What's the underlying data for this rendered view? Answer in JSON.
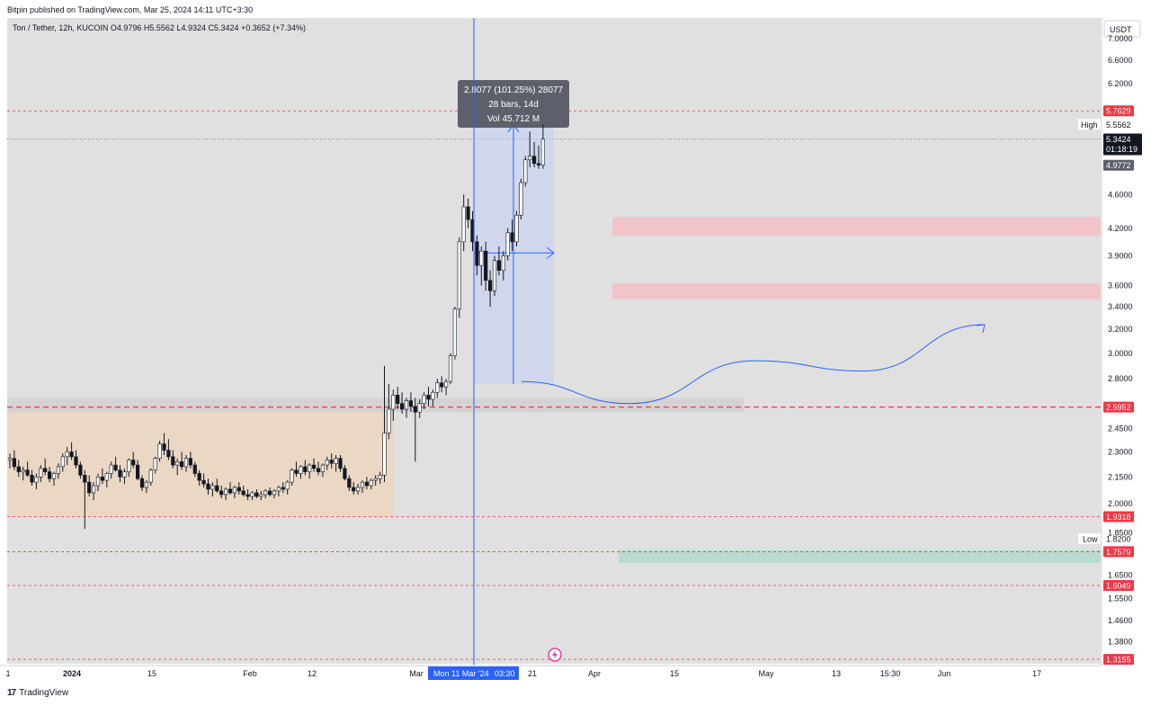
{
  "header": {
    "published": "Bitpin published on TradingView.com, Mar 25, 2024 14:11 UTC+3:30"
  },
  "footer": {
    "brand": "TradingView",
    "logo": "17"
  },
  "legend": {
    "text": "Ton / Tether, 12h, KUCOIN  O4.9796  H5.5562  L4.9324  C5.3424  +0.3652 (+7.34%)"
  },
  "currency": "USDT",
  "colors": {
    "up": "#ffffff",
    "down": "#131722",
    "dashed": "#f23645",
    "crosshair": "#2962ff",
    "bg": "#e0e0e0"
  },
  "chart_data": {
    "type": "candlestick",
    "title": "Ton / Tether, 12h, KUCOIN",
    "y_axis": {
      "scale": "log",
      "range": [
        1.3,
        7.4
      ]
    },
    "x_axis_labels": [
      "1",
      "2024",
      "15",
      "Feb",
      "12",
      "Mar",
      "21",
      "Apr",
      "15",
      "May",
      "13",
      "15:30",
      "Jun",
      "17"
    ],
    "price_ticks": [
      "7.0000",
      "6.6000",
      "6.2000",
      "4.6000",
      "4.2000",
      "3.9000",
      "3.6000",
      "3.4000",
      "3.2000",
      "3.0000",
      "2.8000",
      "2.4500",
      "2.3000",
      "2.1500",
      "2.0000",
      "1.8500",
      "1.6500",
      "1.5500",
      "1.4600",
      "1.3800"
    ],
    "horizontal_levels": [
      {
        "value": 5.7629,
        "label": "5.7629",
        "style": "dashed",
        "color": "#f23645"
      },
      {
        "value": 2.5952,
        "label": "2.5952",
        "style": "dashed",
        "color": "#f23645"
      },
      {
        "value": 1.9318,
        "label": "1.9318",
        "style": "dashed",
        "color": "#f23645"
      },
      {
        "value": 1.7579,
        "label": "1.7579",
        "style": "dashed",
        "color": "#f23645"
      },
      {
        "value": 1.6049,
        "label": "1.6049",
        "style": "dashed",
        "color": "#f23645"
      },
      {
        "value": 1.3155,
        "label": "1.3155",
        "style": "dashed",
        "color": "#f23645"
      }
    ],
    "high": {
      "label": "High",
      "value": "5.5562"
    },
    "low": {
      "label": "Low",
      "value": "1.8200"
    },
    "last_price": {
      "value": "5.3424",
      "countdown": "01:18:19"
    },
    "prev_close": {
      "value": "4.9772"
    },
    "zones": [
      {
        "kind": "resistance",
        "low": 4.12,
        "high": 4.33,
        "color": "#f0c4c8"
      },
      {
        "kind": "resistance",
        "low": 3.47,
        "high": 3.62,
        "color": "#f0c4c8"
      },
      {
        "kind": "support",
        "low": 1.705,
        "high": 1.765,
        "color": "#b9dcd0"
      },
      {
        "kind": "range",
        "low": 1.93,
        "high": 2.59,
        "color": "#ead8c4"
      },
      {
        "kind": "band",
        "low": 2.56,
        "high": 2.66,
        "color": "#d0d0d0"
      }
    ],
    "measure_tool": {
      "line1": "2.8077 (101.25%) 28077",
      "line2": "28 bars, 14d",
      "line3": "Vol 45.712 M",
      "from": 2.76,
      "to": 5.55
    },
    "crosshair_label": {
      "date": "Mon 11 Mar '24",
      "time": "03:30"
    },
    "projection_path": [
      {
        "x": 580,
        "price": 2.78
      },
      {
        "x": 700,
        "price": 2.62
      },
      {
        "x": 840,
        "price": 2.94
      },
      {
        "x": 960,
        "price": 2.86
      },
      {
        "x": 1095,
        "price": 3.24
      }
    ],
    "candles": [
      [
        2.25,
        2.29,
        2.2,
        2.26
      ],
      [
        2.26,
        2.31,
        2.19,
        2.21
      ],
      [
        2.21,
        2.25,
        2.15,
        2.18
      ],
      [
        2.18,
        2.21,
        2.13,
        2.19
      ],
      [
        2.19,
        2.24,
        2.15,
        2.16
      ],
      [
        2.16,
        2.19,
        2.1,
        2.12
      ],
      [
        2.12,
        2.17,
        2.08,
        2.15
      ],
      [
        2.15,
        2.22,
        2.12,
        2.2
      ],
      [
        2.2,
        2.26,
        2.16,
        2.18
      ],
      [
        2.18,
        2.21,
        2.12,
        2.14
      ],
      [
        2.14,
        2.18,
        2.1,
        2.17
      ],
      [
        2.17,
        2.23,
        2.14,
        2.21
      ],
      [
        2.21,
        2.29,
        2.18,
        2.27
      ],
      [
        2.27,
        2.33,
        2.22,
        2.3
      ],
      [
        2.3,
        2.36,
        2.25,
        2.27
      ],
      [
        2.27,
        2.31,
        2.2,
        2.22
      ],
      [
        2.22,
        2.24,
        2.14,
        2.16
      ],
      [
        2.16,
        2.19,
        1.87,
        2.12
      ],
      [
        2.12,
        2.16,
        2.04,
        2.06
      ],
      [
        2.06,
        2.12,
        2.02,
        2.1
      ],
      [
        2.1,
        2.17,
        2.07,
        2.15
      ],
      [
        2.15,
        2.2,
        2.11,
        2.13
      ],
      [
        2.13,
        2.18,
        2.09,
        2.17
      ],
      [
        2.17,
        2.24,
        2.14,
        2.22
      ],
      [
        2.22,
        2.27,
        2.18,
        2.19
      ],
      [
        2.19,
        2.22,
        2.12,
        2.15
      ],
      [
        2.15,
        2.2,
        2.11,
        2.18
      ],
      [
        2.18,
        2.26,
        2.15,
        2.25
      ],
      [
        2.25,
        2.3,
        2.2,
        2.22
      ],
      [
        2.22,
        2.25,
        2.13,
        2.14
      ],
      [
        2.14,
        2.16,
        2.07,
        2.09
      ],
      [
        2.09,
        2.13,
        2.06,
        2.12
      ],
      [
        2.12,
        2.2,
        2.1,
        2.19
      ],
      [
        2.19,
        2.27,
        2.17,
        2.26
      ],
      [
        2.26,
        2.37,
        2.24,
        2.35
      ],
      [
        2.35,
        2.42,
        2.28,
        2.31
      ],
      [
        2.31,
        2.38,
        2.25,
        2.27
      ],
      [
        2.27,
        2.31,
        2.2,
        2.22
      ],
      [
        2.22,
        2.26,
        2.16,
        2.24
      ],
      [
        2.24,
        2.3,
        2.19,
        2.21
      ],
      [
        2.21,
        2.28,
        2.18,
        2.26
      ],
      [
        2.26,
        2.3,
        2.2,
        2.22
      ],
      [
        2.22,
        2.24,
        2.15,
        2.17
      ],
      [
        2.17,
        2.19,
        2.1,
        2.13
      ],
      [
        2.13,
        2.17,
        2.09,
        2.11
      ],
      [
        2.11,
        2.14,
        2.05,
        2.08
      ],
      [
        2.08,
        2.12,
        2.04,
        2.1
      ],
      [
        2.1,
        2.14,
        2.06,
        2.07
      ],
      [
        2.07,
        2.1,
        2.03,
        2.05
      ],
      [
        2.05,
        2.09,
        2.02,
        2.08
      ],
      [
        2.08,
        2.12,
        2.05,
        2.06
      ],
      [
        2.06,
        2.1,
        2.03,
        2.09
      ],
      [
        2.09,
        2.12,
        2.05,
        2.07
      ],
      [
        2.07,
        2.1,
        2.04,
        2.05
      ],
      [
        2.05,
        2.08,
        2.02,
        2.04
      ],
      [
        2.04,
        2.07,
        2.02,
        2.06
      ],
      [
        2.06,
        2.08,
        2.03,
        2.04
      ],
      [
        2.04,
        2.07,
        2.02,
        2.05
      ],
      [
        2.05,
        2.08,
        2.03,
        2.07
      ],
      [
        2.07,
        2.09,
        2.04,
        2.05
      ],
      [
        2.05,
        2.08,
        2.03,
        2.07
      ],
      [
        2.07,
        2.1,
        2.04,
        2.09
      ],
      [
        2.09,
        2.12,
        2.06,
        2.08
      ],
      [
        2.08,
        2.13,
        2.05,
        2.12
      ],
      [
        2.12,
        2.2,
        2.1,
        2.19
      ],
      [
        2.19,
        2.24,
        2.15,
        2.17
      ],
      [
        2.17,
        2.22,
        2.14,
        2.21
      ],
      [
        2.21,
        2.25,
        2.16,
        2.18
      ],
      [
        2.18,
        2.23,
        2.14,
        2.22
      ],
      [
        2.22,
        2.26,
        2.18,
        2.2
      ],
      [
        2.2,
        2.24,
        2.16,
        2.18
      ],
      [
        2.18,
        2.23,
        2.15,
        2.22
      ],
      [
        2.22,
        2.27,
        2.19,
        2.25
      ],
      [
        2.25,
        2.29,
        2.2,
        2.23
      ],
      [
        2.23,
        2.28,
        2.18,
        2.26
      ],
      [
        2.26,
        2.28,
        2.18,
        2.2
      ],
      [
        2.2,
        2.22,
        2.13,
        2.14
      ],
      [
        2.14,
        2.16,
        2.07,
        2.09
      ],
      [
        2.09,
        2.12,
        2.05,
        2.07
      ],
      [
        2.07,
        2.11,
        2.05,
        2.09
      ],
      [
        2.09,
        2.13,
        2.06,
        2.12
      ],
      [
        2.12,
        2.15,
        2.08,
        2.1
      ],
      [
        2.1,
        2.14,
        2.08,
        2.13
      ],
      [
        2.13,
        2.16,
        2.1,
        2.14
      ],
      [
        2.14,
        2.18,
        2.11,
        2.16
      ],
      [
        2.16,
        2.9,
        2.12,
        2.42
      ],
      [
        2.42,
        2.76,
        2.38,
        2.58
      ],
      [
        2.58,
        2.72,
        2.5,
        2.68
      ],
      [
        2.68,
        2.74,
        2.58,
        2.62
      ],
      [
        2.62,
        2.7,
        2.55,
        2.58
      ],
      [
        2.58,
        2.66,
        2.52,
        2.64
      ],
      [
        2.64,
        2.7,
        2.56,
        2.6
      ],
      [
        2.6,
        2.66,
        2.24,
        2.56
      ],
      [
        2.56,
        2.65,
        2.52,
        2.62
      ],
      [
        2.62,
        2.7,
        2.58,
        2.68
      ],
      [
        2.68,
        2.74,
        2.6,
        2.65
      ],
      [
        2.65,
        2.72,
        2.6,
        2.7
      ],
      [
        2.7,
        2.8,
        2.66,
        2.77
      ],
      [
        2.77,
        2.82,
        2.7,
        2.74
      ],
      [
        2.74,
        2.8,
        2.68,
        2.78
      ],
      [
        2.78,
        3.0,
        2.76,
        2.98
      ],
      [
        2.98,
        3.4,
        2.95,
        3.38
      ],
      [
        3.38,
        4.1,
        3.3,
        4.05
      ],
      [
        4.05,
        4.6,
        3.95,
        4.45
      ],
      [
        4.45,
        4.55,
        4.2,
        4.3
      ],
      [
        4.3,
        4.4,
        3.95,
        4.05
      ],
      [
        4.05,
        4.12,
        3.7,
        3.8
      ],
      [
        3.8,
        4.0,
        3.6,
        3.95
      ],
      [
        3.95,
        4.05,
        3.55,
        3.65
      ],
      [
        3.65,
        3.75,
        3.4,
        3.55
      ],
      [
        3.55,
        3.9,
        3.5,
        3.85
      ],
      [
        3.85,
        4.0,
        3.7,
        3.75
      ],
      [
        3.75,
        3.95,
        3.65,
        3.9
      ],
      [
        3.9,
        4.2,
        3.85,
        4.15
      ],
      [
        4.15,
        4.3,
        3.95,
        4.05
      ],
      [
        4.05,
        4.4,
        4.0,
        4.35
      ],
      [
        4.35,
        4.8,
        4.3,
        4.75
      ],
      [
        4.75,
        5.1,
        4.7,
        5.05
      ],
      [
        5.05,
        5.45,
        4.95,
        5.1
      ],
      [
        5.1,
        5.3,
        4.95,
        5.0
      ],
      [
        5.0,
        5.25,
        4.93,
        4.98
      ],
      [
        4.98,
        5.56,
        4.93,
        5.34
      ]
    ]
  }
}
